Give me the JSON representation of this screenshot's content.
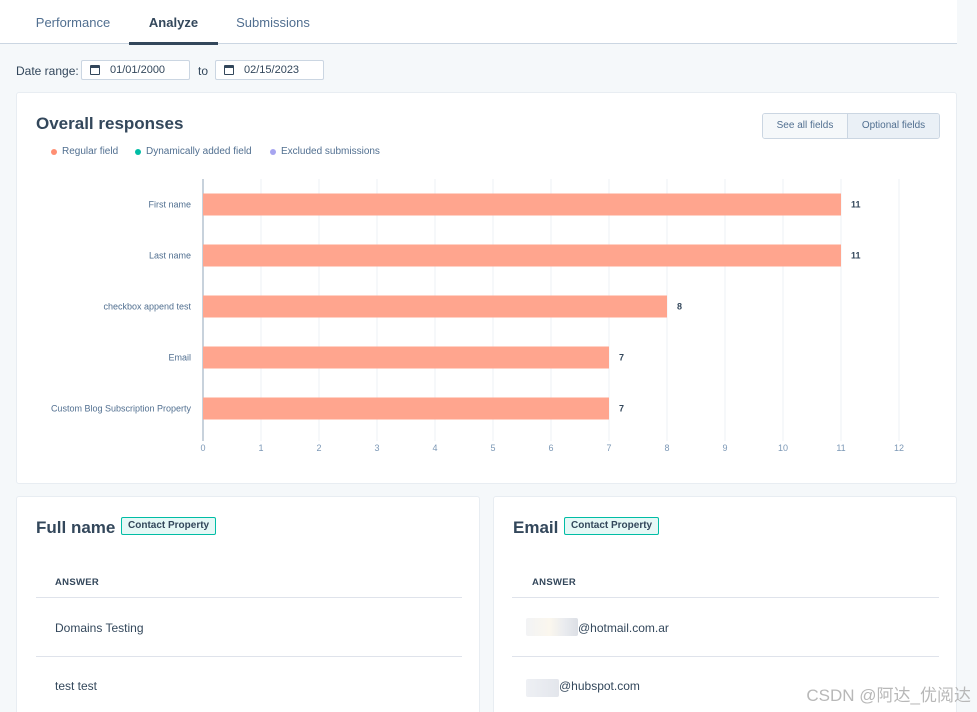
{
  "tabs": [
    {
      "label": "Performance"
    },
    {
      "label": "Analyze"
    },
    {
      "label": "Submissions"
    }
  ],
  "date_range": {
    "label": "Date range:",
    "from": "01/01/2000",
    "to_label": "to",
    "to": "02/15/2023"
  },
  "overall": {
    "title": "Overall responses",
    "buttons": {
      "see_all": "See all fields",
      "optional": "Optional fields"
    },
    "legend": [
      {
        "label": "Regular field",
        "color": "#ff8f73"
      },
      {
        "label": "Dynamically added field",
        "color": "#00bda5"
      },
      {
        "label": "Excluded submissions",
        "color": "#a7a5f0"
      }
    ]
  },
  "chart_data": {
    "type": "bar",
    "orientation": "horizontal",
    "categories": [
      "First name",
      "Last name",
      "checkbox append test",
      "Email",
      "Custom Blog Subscription Property"
    ],
    "values": [
      11,
      11,
      8,
      7,
      7
    ],
    "xlim": [
      0,
      12
    ],
    "xticks": [
      0,
      1,
      2,
      3,
      4,
      5,
      6,
      7,
      8,
      9,
      10,
      11,
      12
    ],
    "grid": true,
    "bar_color": "#ffa58e",
    "legend_placement": "top-left"
  },
  "full_name_card": {
    "title": "Full name",
    "badge": "Contact Property",
    "column": "ANSWER",
    "answers": [
      "Domains Testing",
      "test test"
    ]
  },
  "email_card": {
    "title": "Email",
    "badge": "Contact Property",
    "column": "ANSWER",
    "answers": [
      "@hotmail.com.ar",
      "@hubspot.com"
    ]
  },
  "watermark": "CSDN @阿达_优阅达"
}
